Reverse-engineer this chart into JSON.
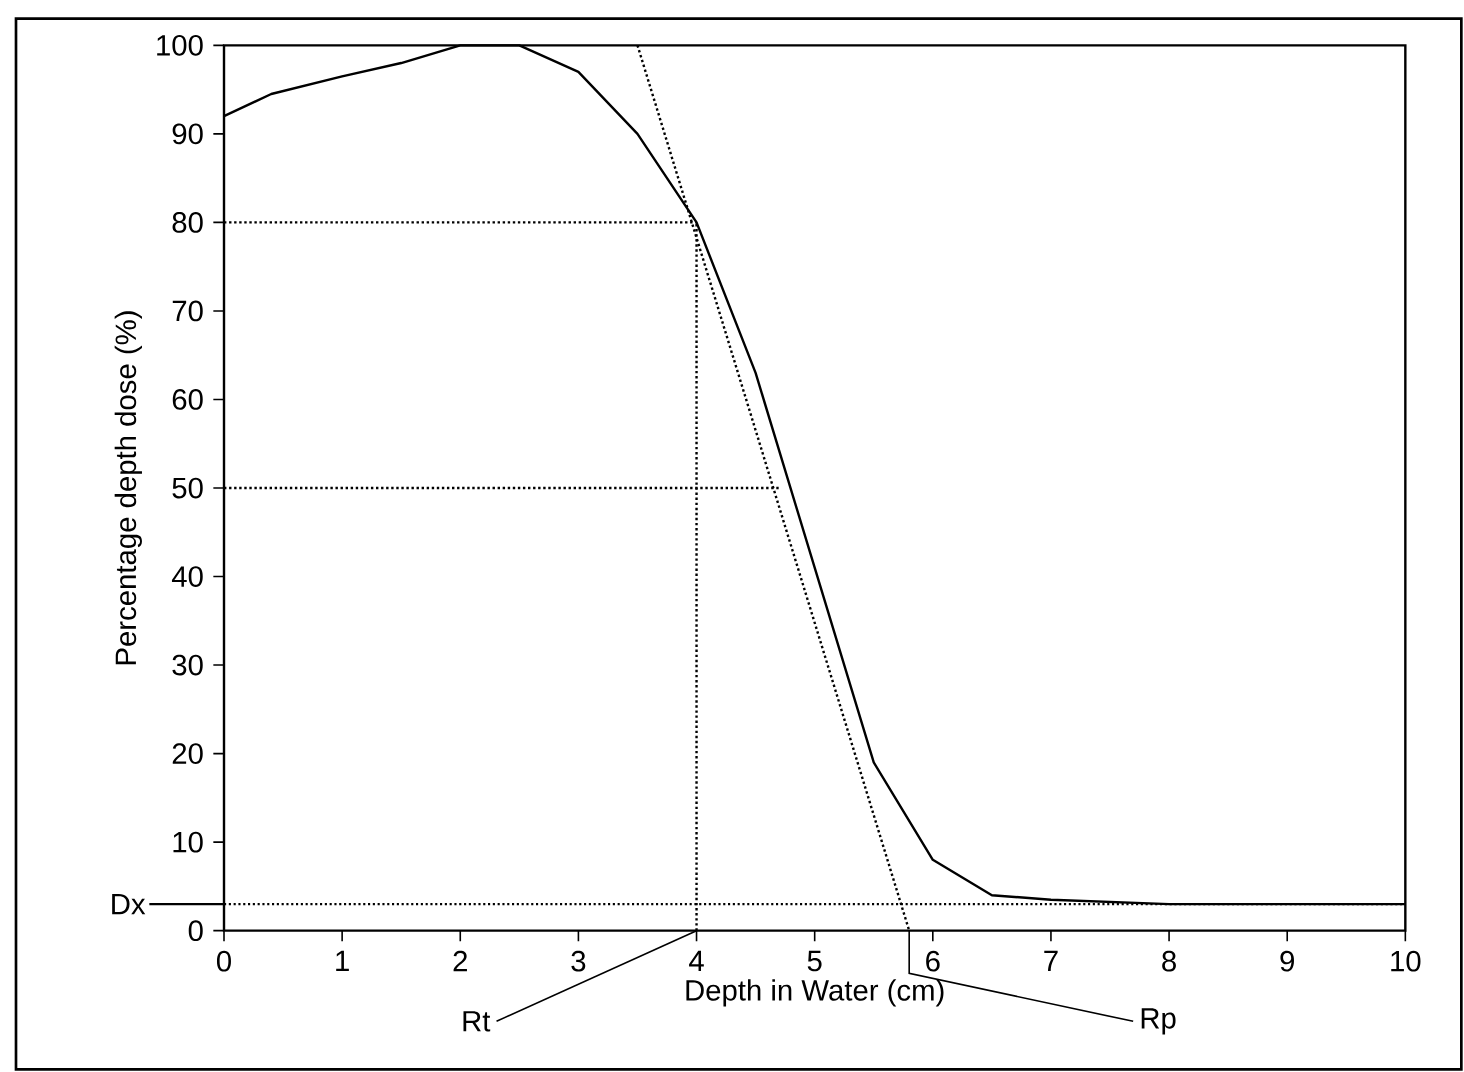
{
  "chart_data": {
    "type": "line",
    "xlabel": "Depth in Water (cm)",
    "ylabel": "Percentage depth dose (%)",
    "xlim": [
      0,
      10
    ],
    "ylim": [
      0,
      100
    ],
    "xticks": [
      0,
      1,
      2,
      3,
      4,
      5,
      6,
      7,
      8,
      9,
      10
    ],
    "yticks": [
      0,
      10,
      20,
      30,
      40,
      50,
      60,
      70,
      80,
      90,
      100
    ],
    "grid": false,
    "marker": "none",
    "series": [
      {
        "color": "#000000",
        "line_style": "solid",
        "x": [
          0,
          0.4,
          1,
          1.5,
          2,
          2.5,
          3,
          3.5,
          4,
          4.5,
          5,
          5.5,
          6,
          6.5,
          7,
          8,
          10
        ],
        "values": [
          92,
          94.5,
          96.5,
          98,
          100,
          100,
          97,
          90,
          80,
          63,
          41,
          19,
          8,
          4,
          3.5,
          3,
          3
        ]
      },
      {
        "color": "#000000",
        "line_style": "dotted",
        "x": [
          3.5,
          5.8
        ],
        "values": [
          100,
          0
        ]
      },
      {
        "color": "#000000",
        "line_style": "dotted",
        "x": [
          0,
          4
        ],
        "values": [
          80,
          80
        ]
      },
      {
        "color": "#000000",
        "line_style": "dotted",
        "x": [
          0,
          4.7
        ],
        "values": [
          50,
          50
        ]
      },
      {
        "color": "#000000",
        "line_style": "dotted",
        "x": [
          4,
          4
        ],
        "values": [
          0,
          80
        ]
      }
    ],
    "ref_lines": [
      {
        "axis": "y",
        "value": 3,
        "label": "Dx",
        "line_style": "dotted",
        "color": "#000000"
      }
    ],
    "annotations": [
      {
        "text": "Rt",
        "x": 4,
        "y": 0
      },
      {
        "text": "Rp",
        "x": 5.8,
        "y": 0
      }
    ]
  }
}
